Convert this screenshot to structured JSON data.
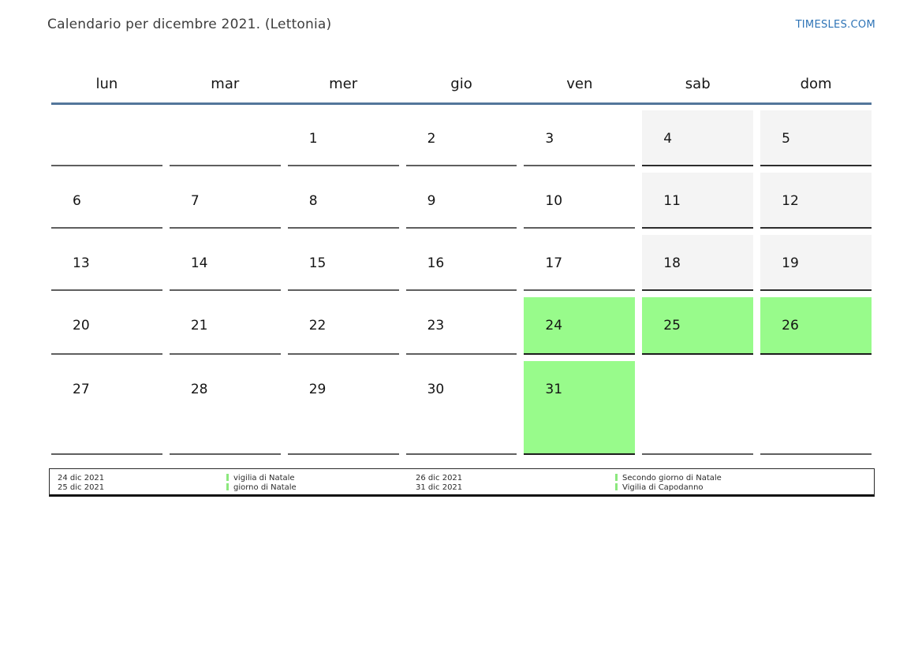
{
  "title": "Calendario per dicembre 2021. (Lettonia)",
  "site_link": "TIMESLES.COM",
  "weekdays": [
    "lun",
    "mar",
    "mer",
    "gio",
    "ven",
    "sab",
    "dom"
  ],
  "weeks": [
    [
      "",
      "",
      "1",
      "2",
      "3",
      "4",
      "5"
    ],
    [
      "6",
      "7",
      "8",
      "9",
      "10",
      "11",
      "12"
    ],
    [
      "13",
      "14",
      "15",
      "16",
      "17",
      "18",
      "19"
    ],
    [
      "20",
      "21",
      "22",
      "23",
      "24",
      "25",
      "26"
    ],
    [
      "27",
      "28",
      "29",
      "30",
      "31",
      "",
      ""
    ]
  ],
  "holiday_days": [
    "24",
    "25",
    "26",
    "31"
  ],
  "weekend_days": [
    "4",
    "5",
    "11",
    "12",
    "18",
    "19"
  ],
  "legend": {
    "entries": [
      {
        "date": "24 dic 2021",
        "label": "vigilia di Natale"
      },
      {
        "date": "25 dic 2021",
        "label": "giorno di Natale"
      },
      {
        "date": "26 dic 2021",
        "label": "Secondo giorno di Natale"
      },
      {
        "date": "31 dic 2021",
        "label": "Vigilia di Capodanno"
      }
    ]
  },
  "colors": {
    "holiday_bg": "#98fb8b",
    "weekend_bg": "#f4f4f4",
    "header_rule": "#53769b",
    "link": "#2d73b6",
    "legend_marker": "#8ce87e"
  }
}
